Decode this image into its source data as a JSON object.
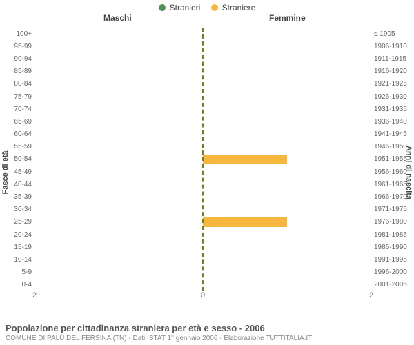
{
  "legend": {
    "items": [
      {
        "label": "Stranieri",
        "color": "#578f57"
      },
      {
        "label": "Straniere",
        "color": "#f6b73e"
      }
    ]
  },
  "columns": {
    "left_title": "Maschi",
    "right_title": "Femmine"
  },
  "y_axis": {
    "left_title": "Fasce di età",
    "right_title": "Anni di nascita"
  },
  "colors": {
    "male_bar": "#578f57",
    "female_bar": "#f6b73e",
    "center_line": "#808000",
    "background": "#ffffff",
    "text": "#444444",
    "subtext": "#888888"
  },
  "x_axis": {
    "ticks": [
      "2",
      "0",
      "2"
    ],
    "max": 2
  },
  "rows": [
    {
      "age": "100+",
      "birth": "≤ 1905",
      "m": 0,
      "f": 0
    },
    {
      "age": "95-99",
      "birth": "1906-1910",
      "m": 0,
      "f": 0
    },
    {
      "age": "90-94",
      "birth": "1911-1915",
      "m": 0,
      "f": 0
    },
    {
      "age": "85-89",
      "birth": "1916-1920",
      "m": 0,
      "f": 0
    },
    {
      "age": "80-84",
      "birth": "1921-1925",
      "m": 0,
      "f": 0
    },
    {
      "age": "75-79",
      "birth": "1926-1930",
      "m": 0,
      "f": 0
    },
    {
      "age": "70-74",
      "birth": "1931-1935",
      "m": 0,
      "f": 0
    },
    {
      "age": "65-69",
      "birth": "1936-1940",
      "m": 0,
      "f": 0
    },
    {
      "age": "60-64",
      "birth": "1941-1945",
      "m": 0,
      "f": 0
    },
    {
      "age": "55-59",
      "birth": "1946-1950",
      "m": 0,
      "f": 0
    },
    {
      "age": "50-54",
      "birth": "1951-1955",
      "m": 0,
      "f": 1
    },
    {
      "age": "45-49",
      "birth": "1956-1960",
      "m": 0,
      "f": 0
    },
    {
      "age": "40-44",
      "birth": "1961-1965",
      "m": 0,
      "f": 0
    },
    {
      "age": "35-39",
      "birth": "1966-1970",
      "m": 0,
      "f": 0
    },
    {
      "age": "30-34",
      "birth": "1971-1975",
      "m": 0,
      "f": 0
    },
    {
      "age": "25-29",
      "birth": "1976-1980",
      "m": 0,
      "f": 1
    },
    {
      "age": "20-24",
      "birth": "1981-1985",
      "m": 0,
      "f": 0
    },
    {
      "age": "15-19",
      "birth": "1986-1990",
      "m": 0,
      "f": 0
    },
    {
      "age": "10-14",
      "birth": "1991-1995",
      "m": 0,
      "f": 0
    },
    {
      "age": "5-9",
      "birth": "1996-2000",
      "m": 0,
      "f": 0
    },
    {
      "age": "0-4",
      "birth": "2001-2005",
      "m": 0,
      "f": 0
    }
  ],
  "footer": {
    "title": "Popolazione per cittadinanza straniera per età e sesso - 2006",
    "subtitle": "COMUNE DI PALÙ DEL FERSINA (TN) - Dati ISTAT 1° gennaio 2006 - Elaborazione TUTTITALIA.IT"
  }
}
